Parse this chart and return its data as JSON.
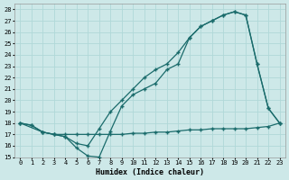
{
  "xlabel": "Humidex (Indice chaleur)",
  "xlim": [
    -0.5,
    23.5
  ],
  "ylim": [
    15,
    28.5
  ],
  "xticks": [
    0,
    1,
    2,
    3,
    4,
    5,
    6,
    7,
    8,
    9,
    10,
    11,
    12,
    13,
    14,
    15,
    16,
    17,
    18,
    19,
    20,
    21,
    22,
    23
  ],
  "yticks": [
    15,
    16,
    17,
    18,
    19,
    20,
    21,
    22,
    23,
    24,
    25,
    26,
    27,
    28
  ],
  "background_color": "#cde8e8",
  "grid_color": "#b0d8d8",
  "line_color": "#1a6b6b",
  "line1_x": [
    0,
    1,
    2,
    3,
    4,
    5,
    6,
    7,
    8,
    9,
    10,
    11,
    12,
    13,
    14,
    15,
    16,
    17,
    18,
    19,
    20,
    21,
    22,
    23
  ],
  "line1_y": [
    18.0,
    17.8,
    17.2,
    17.0,
    17.0,
    17.0,
    17.0,
    17.0,
    17.0,
    17.0,
    17.1,
    17.1,
    17.2,
    17.2,
    17.3,
    17.4,
    17.4,
    17.5,
    17.5,
    17.5,
    17.5,
    17.6,
    17.7,
    18.0
  ],
  "line2_x": [
    0,
    1,
    2,
    3,
    4,
    5,
    6,
    7,
    8,
    9,
    10,
    11,
    12,
    13,
    14,
    15,
    16,
    17,
    18,
    19,
    20,
    21,
    22,
    23
  ],
  "line2_y": [
    18.0,
    17.8,
    17.2,
    17.0,
    16.8,
    15.8,
    15.1,
    15.0,
    17.3,
    19.5,
    20.5,
    21.0,
    21.5,
    22.7,
    23.2,
    25.5,
    26.5,
    27.0,
    27.5,
    27.8,
    27.5,
    23.2,
    19.3,
    18.0
  ],
  "line3_x": [
    0,
    2,
    3,
    4,
    5,
    6,
    7,
    8,
    9,
    10,
    11,
    12,
    13,
    14,
    15,
    16,
    17,
    18,
    19,
    20,
    21,
    22,
    23
  ],
  "line3_y": [
    18.0,
    17.2,
    17.0,
    16.8,
    16.2,
    16.0,
    17.5,
    19.0,
    20.0,
    21.0,
    22.0,
    22.7,
    23.2,
    24.2,
    25.5,
    26.5,
    27.0,
    27.5,
    27.8,
    27.5,
    23.2,
    19.3,
    18.0
  ]
}
